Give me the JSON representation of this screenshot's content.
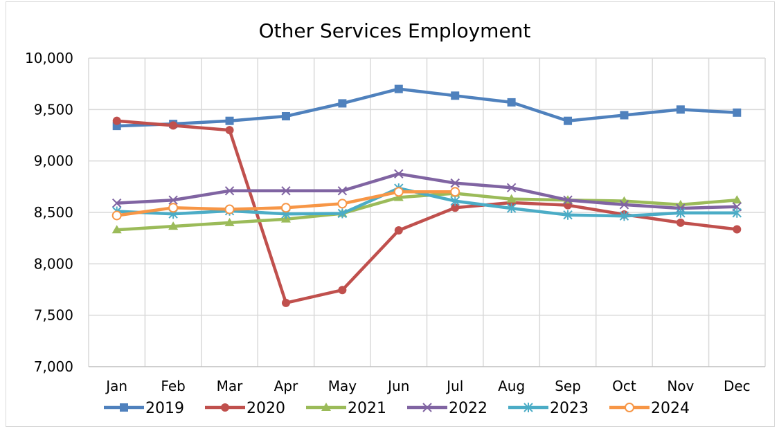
{
  "chart_data": {
    "type": "line",
    "title": "Other Services Employment",
    "xlabel": "",
    "ylabel": "",
    "categories": [
      "Jan",
      "Feb",
      "Mar",
      "Apr",
      "May",
      "Jun",
      "Jul",
      "Aug",
      "Sep",
      "Oct",
      "Nov",
      "Dec"
    ],
    "ylim": [
      7000,
      10000
    ],
    "yticks": [
      7000,
      7500,
      8000,
      8500,
      9000,
      9500,
      10000
    ],
    "ytick_labels": [
      "7,000",
      "7,500",
      "8,000",
      "8,500",
      "9,000",
      "9,500",
      "10,000"
    ],
    "grid": true,
    "legend_position": "bottom",
    "series": [
      {
        "name": "2019",
        "color": "#4f81bd",
        "marker": "square",
        "values": [
          9340,
          9360,
          9390,
          9435,
          9560,
          9700,
          9635,
          9570,
          9390,
          9445,
          9500,
          9470
        ]
      },
      {
        "name": "2020",
        "color": "#c0504d",
        "marker": "circle",
        "values": [
          9390,
          9345,
          9300,
          7620,
          7745,
          8325,
          8545,
          8595,
          8570,
          8480,
          8400,
          8335
        ]
      },
      {
        "name": "2021",
        "color": "#9bbb59",
        "marker": "triangle",
        "values": [
          8330,
          8365,
          8400,
          8435,
          8490,
          8645,
          8685,
          8630,
          8620,
          8610,
          8575,
          8620
        ]
      },
      {
        "name": "2022",
        "color": "#8064a2",
        "marker": "x",
        "values": [
          8590,
          8620,
          8710,
          8710,
          8710,
          8875,
          8785,
          8740,
          8620,
          8575,
          8540,
          8555
        ]
      },
      {
        "name": "2023",
        "color": "#4bacc6",
        "marker": "asterisk",
        "values": [
          8510,
          8485,
          8515,
          8485,
          8490,
          8735,
          8610,
          8540,
          8475,
          8465,
          8495,
          8495
        ]
      },
      {
        "name": "2024",
        "color": "#f79646",
        "marker": "open-circle",
        "values": [
          8470,
          8545,
          8530,
          8545,
          8585,
          8700,
          8700,
          null,
          null,
          null,
          null,
          null
        ]
      }
    ]
  }
}
